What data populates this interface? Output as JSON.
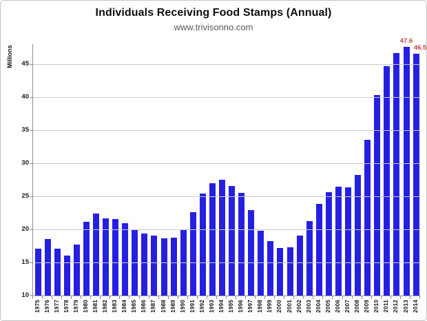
{
  "chart_data": {
    "type": "bar",
    "title": "Individuals Receiving Food Stamps (Annual)",
    "subtitle": "www.trivisonno.com",
    "ylabel": "Millions",
    "xlabel": "",
    "categories": [
      "1975",
      "1976",
      "1977",
      "1978",
      "1979",
      "1980",
      "1981",
      "1982",
      "1983",
      "1984",
      "1985",
      "1986",
      "1987",
      "1988",
      "1989",
      "1990",
      "1991",
      "1992",
      "1993",
      "1994",
      "1995",
      "1996",
      "1997",
      "1998",
      "1999",
      "2000",
      "2001",
      "2002",
      "2003",
      "2004",
      "2005",
      "2006",
      "2007",
      "2008",
      "2009",
      "2010",
      "2011",
      "2012",
      "2013",
      "2014"
    ],
    "values": [
      17.1,
      18.5,
      17.1,
      16.0,
      17.7,
      21.1,
      22.4,
      21.7,
      21.6,
      20.9,
      19.9,
      19.4,
      19.1,
      18.6,
      18.8,
      20.0,
      22.6,
      25.4,
      27.0,
      27.5,
      26.6,
      25.5,
      22.9,
      19.8,
      18.2,
      17.2,
      17.3,
      19.1,
      21.3,
      23.9,
      25.6,
      26.5,
      26.3,
      28.2,
      33.5,
      40.3,
      44.7,
      46.6,
      47.6,
      46.5
    ],
    "ylim": [
      10,
      48
    ],
    "yticks": [
      10,
      15,
      20,
      25,
      30,
      35,
      40,
      45
    ],
    "grid": "horizontal",
    "legend": "none",
    "point_labels": [
      {
        "category": "2013",
        "text": "47.6",
        "offset_x": 0
      },
      {
        "category": "2014",
        "text": "46.5",
        "offset_x": 6
      }
    ]
  },
  "colors": {
    "bar": "#2520e1",
    "point_label": "#bb4a42",
    "gridline": "#c9c9c9",
    "axis": "#8f8f8f",
    "title": "#0d0d0d",
    "subtitle": "#595959"
  }
}
